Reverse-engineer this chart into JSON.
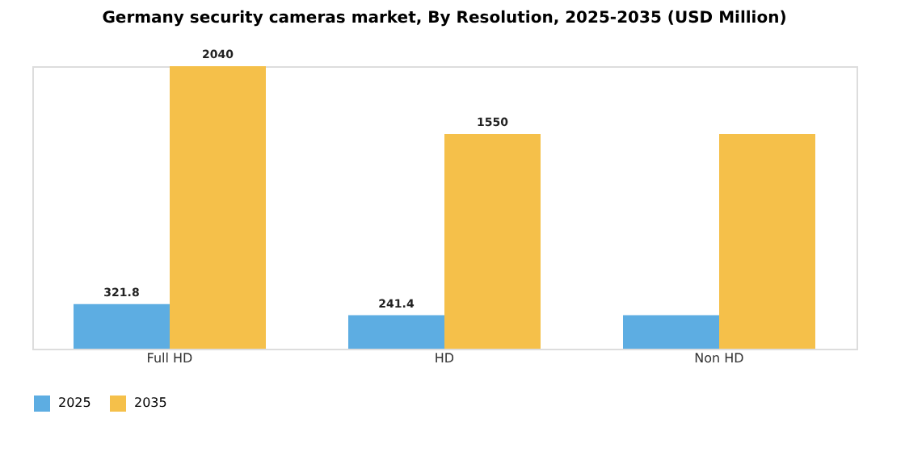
{
  "chart_data": {
    "type": "bar",
    "title": "Germany security cameras market, By Resolution, 2025-2035 (USD Million)",
    "categories": [
      "Full HD",
      "HD",
      "Non HD"
    ],
    "series": [
      {
        "name": "2025",
        "color": "#5dade2",
        "values": [
          321.8,
          241.4,
          241.4
        ],
        "value_labels": [
          "321.8",
          "241.4",
          null
        ]
      },
      {
        "name": "2035",
        "color": "#f5c04a",
        "values": [
          2040,
          1550,
          1550
        ],
        "value_labels": [
          "2040",
          "1550",
          null
        ]
      }
    ],
    "legend": "bottom",
    "grid": false,
    "tick_labels": "x"
  }
}
